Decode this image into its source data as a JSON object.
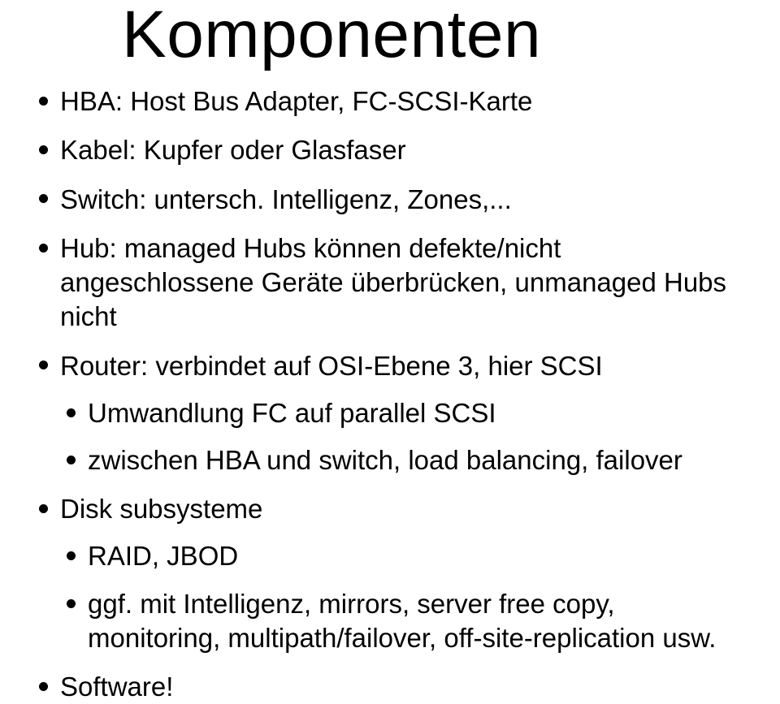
{
  "title": "Komponenten",
  "bullets": [
    {
      "text": "HBA: Host Bus Adapter, FC-SCSI-Karte"
    },
    {
      "text": "Kabel: Kupfer oder Glasfaser"
    },
    {
      "text": "Switch: untersch. Intelligenz, Zones,..."
    },
    {
      "text": "Hub: managed Hubs können defekte/nicht angeschlossene Geräte überbrücken, unmanaged Hubs nicht"
    },
    {
      "text": "Router: verbindet auf OSI-Ebene 3, hier SCSI",
      "children": [
        {
          "text": "Umwandlung FC auf parallel SCSI"
        },
        {
          "text": "zwischen HBA und switch, load balancing, failover"
        }
      ]
    },
    {
      "text": "Disk subsysteme",
      "children": [
        {
          "text": "RAID, JBOD"
        },
        {
          "text": "ggf. mit Intelligenz, mirrors, server free copy, monitoring, multipath/failover, off-site-replication usw."
        }
      ]
    },
    {
      "text": "Software!"
    }
  ],
  "style": {
    "background_color": "#ffffff",
    "text_color": "#000000",
    "title_fontsize": 82,
    "body_fontsize": 33,
    "bullet_color": "#000000",
    "font_family": "Gill Sans"
  }
}
